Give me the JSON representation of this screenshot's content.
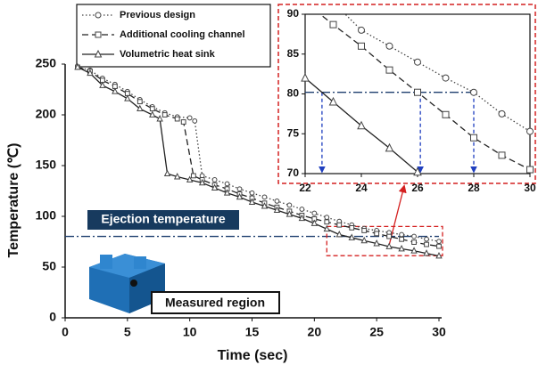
{
  "chart_data": {
    "type": "line",
    "x_label": "Time (sec)",
    "y_label": "Temperature (℃)",
    "xlim": [
      0,
      30
    ],
    "ylim": [
      0,
      250
    ],
    "xticks": [
      0,
      5,
      10,
      15,
      20,
      25,
      30
    ],
    "yticks": [
      0,
      50,
      100,
      150,
      200,
      250
    ],
    "series": [
      {
        "name": "Previous design",
        "color": "#444444",
        "style": "dotted",
        "marker": "circle",
        "x": [
          1,
          2,
          3,
          4,
          5,
          6,
          7,
          8,
          9,
          10,
          10.4,
          11,
          12,
          13,
          14,
          15,
          16,
          17,
          18,
          19,
          20,
          21,
          22,
          23,
          24,
          25,
          26,
          27,
          28,
          29,
          30
        ],
        "values": [
          247,
          244,
          236,
          230,
          223,
          215,
          208,
          202,
          198,
          197,
          194,
          140,
          136,
          132,
          127,
          123,
          119,
          115,
          111,
          107,
          103,
          99,
          95,
          91.5,
          88,
          86,
          84,
          82,
          80.2,
          77.5,
          75.3
        ]
      },
      {
        "name": "Additional cooling channel",
        "color": "#222222",
        "style": "dashed",
        "marker": "square",
        "x": [
          1,
          2,
          3,
          4,
          5,
          6,
          7,
          8,
          9,
          9.5,
          10.3,
          11,
          12,
          13,
          14,
          15,
          16,
          17,
          18,
          19,
          20,
          21,
          22,
          23,
          24,
          25,
          26,
          27,
          28,
          29,
          30
        ],
        "values": [
          247,
          243,
          234,
          228,
          221,
          213,
          206,
          200,
          196,
          193,
          140,
          136,
          131,
          127,
          122,
          118,
          113,
          109,
          105,
          101,
          97.5,
          94.5,
          91.5,
          88.7,
          86,
          83,
          80.2,
          77.4,
          74.5,
          72.3,
          70.5
        ]
      },
      {
        "name": "Volumetric heat sink",
        "color": "#222222",
        "style": "solid",
        "marker": "triangle",
        "x": [
          1,
          2,
          3,
          4,
          5,
          6,
          7,
          7.6,
          8.2,
          9,
          10,
          11,
          12,
          13,
          14,
          15,
          16,
          17,
          18,
          19,
          20,
          21,
          22,
          23,
          24,
          25,
          26,
          27,
          28,
          29,
          30
        ],
        "values": [
          247,
          241,
          229,
          223,
          216,
          206,
          200,
          196,
          142,
          139,
          136,
          133,
          128,
          123,
          119,
          114,
          110,
          106,
          102,
          98,
          93,
          87.5,
          82,
          79,
          76,
          73.2,
          70.2,
          68,
          66,
          63.5,
          61
        ]
      }
    ],
    "ejection_temperature": {
      "label": "Ejection temperature",
      "value": 80.2
    },
    "measured_region_label": "Measured region",
    "inset": {
      "xlim": [
        22,
        30
      ],
      "ylim": [
        70,
        90
      ],
      "xticks": [
        22,
        24,
        26,
        28,
        30
      ],
      "yticks": [
        70,
        75,
        80,
        85,
        90
      ],
      "crossing_times": [
        22.6,
        26.1,
        28
      ]
    }
  }
}
